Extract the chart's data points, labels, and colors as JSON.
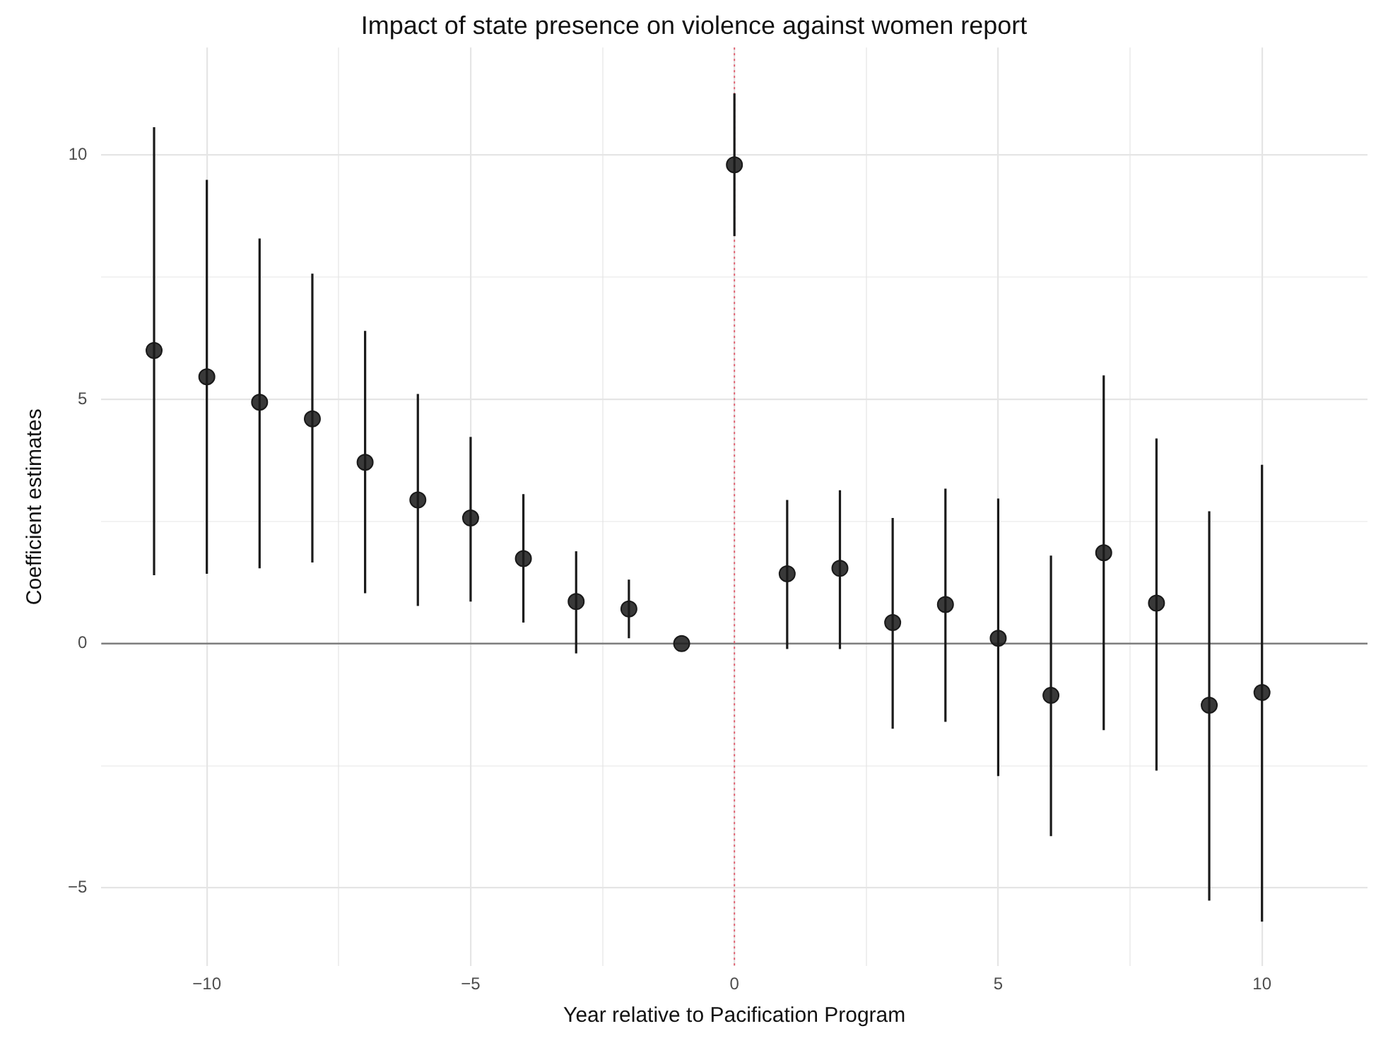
{
  "chart_data": {
    "type": "scatter",
    "title": "Impact of state presence on violence against women report",
    "xlabel": "Year relative to Pacification Program",
    "ylabel": "Coefficient estimates",
    "x": [
      -11,
      -10,
      -9,
      -8,
      -7,
      -6,
      -5,
      -4,
      -3,
      -2,
      -1,
      0,
      1,
      2,
      3,
      4,
      5,
      6,
      7,
      8,
      9,
      10
    ],
    "series": [
      {
        "color": "#1a1a1a",
        "values": [
          6.0,
          5.46,
          4.94,
          4.6,
          3.71,
          2.94,
          2.57,
          1.74,
          0.86,
          0.71,
          0,
          9.8,
          1.43,
          1.54,
          0.43,
          0.8,
          0.11,
          -1.06,
          1.86,
          0.83,
          -1.26,
          -1.0
        ],
        "errors": [
          [
            1.4,
            10.57
          ],
          [
            1.43,
            9.49
          ],
          [
            1.54,
            8.29
          ],
          [
            1.66,
            7.57
          ],
          [
            1.03,
            6.4
          ],
          [
            0.77,
            5.11
          ],
          [
            0.86,
            4.23
          ],
          [
            0.43,
            3.06
          ],
          [
            -0.2,
            1.89
          ],
          [
            0.11,
            1.31
          ],
          null,
          [
            8.34,
            11.26
          ],
          [
            -0.11,
            2.94
          ],
          [
            -0.11,
            3.14
          ],
          [
            -1.74,
            2.57
          ],
          [
            -1.6,
            3.17
          ],
          [
            -2.71,
            2.97
          ],
          [
            -3.94,
            1.8
          ],
          [
            -1.77,
            5.49
          ],
          [
            -2.6,
            4.2
          ],
          [
            -5.26,
            2.71
          ],
          [
            -5.69,
            3.66
          ]
        ]
      }
    ],
    "xlim": [
      -12,
      12
    ],
    "ylim": [
      -6.6,
      12.2
    ],
    "xticks": [
      {
        "value": -10,
        "label": "−10"
      },
      {
        "value": -7.5,
        "label": null
      },
      {
        "value": -5,
        "label": "−5"
      },
      {
        "value": -2.5,
        "label": null
      },
      0,
      {
        "value": 2.5,
        "label": null
      },
      5,
      {
        "value": 7.5,
        "label": null
      },
      10
    ],
    "yticks": [
      {
        "value": -5,
        "label": "−5"
      },
      {
        "value": -2.5,
        "label": null
      },
      0,
      {
        "value": 2.5,
        "label": null
      },
      5,
      {
        "value": 7.5,
        "label": null
      },
      10
    ],
    "ref_lines": [
      {
        "axis": "y",
        "value": 0,
        "color": "#7f7f7f",
        "line_style": "solid"
      },
      {
        "axis": "x",
        "value": 0,
        "color": "#e06070",
        "line_style": "dotted"
      }
    ],
    "grid": true,
    "legend": false,
    "marker": "circle"
  }
}
